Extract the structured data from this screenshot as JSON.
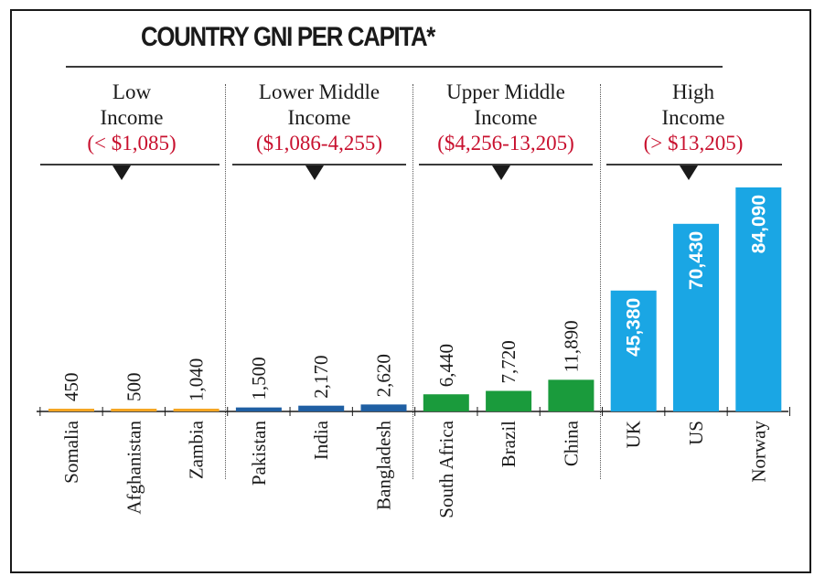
{
  "title": "COUNTRY GNI PER CAPITA*",
  "groups": [
    {
      "name_line1": "Low",
      "name_line2": "Income",
      "range": "(< $1,085)"
    },
    {
      "name_line1": "Lower Middle",
      "name_line2": "Income",
      "range": "($1,086-4,255)"
    },
    {
      "name_line1": "Upper Middle",
      "name_line2": "Income",
      "range": "($4,256-13,205)"
    },
    {
      "name_line1": "High",
      "name_line2": "Income",
      "range": "(> $13,205)"
    }
  ],
  "chart_data": {
    "type": "bar",
    "title": "COUNTRY GNI PER CAPITA*",
    "categories": [
      "Somalia",
      "Afghanistan",
      "Zambia",
      "Pakistan",
      "India",
      "Bangladesh",
      "South Africa",
      "Brazil",
      "China",
      "UK",
      "US",
      "Norway"
    ],
    "values": [
      450,
      500,
      1040,
      1500,
      2170,
      2620,
      6440,
      7720,
      11890,
      45380,
      70430,
      84090
    ],
    "value_labels": [
      "450",
      "500",
      "1,040",
      "1,500",
      "2,170",
      "2,620",
      "6,440",
      "7,720",
      "11,890",
      "45,380",
      "70,430",
      "84,090"
    ],
    "bar_colors": [
      "#f5a623",
      "#f5a623",
      "#f5a623",
      "#1f5fa3",
      "#1f5fa3",
      "#1f5fa3",
      "#1a9b3c",
      "#1a9b3c",
      "#1a9b3c",
      "#1aa6e4",
      "#1aa6e4",
      "#1aa6e4"
    ],
    "ylim": [
      0,
      84090
    ],
    "xlabel": "",
    "ylabel": "",
    "grid": false,
    "legend": "none"
  }
}
